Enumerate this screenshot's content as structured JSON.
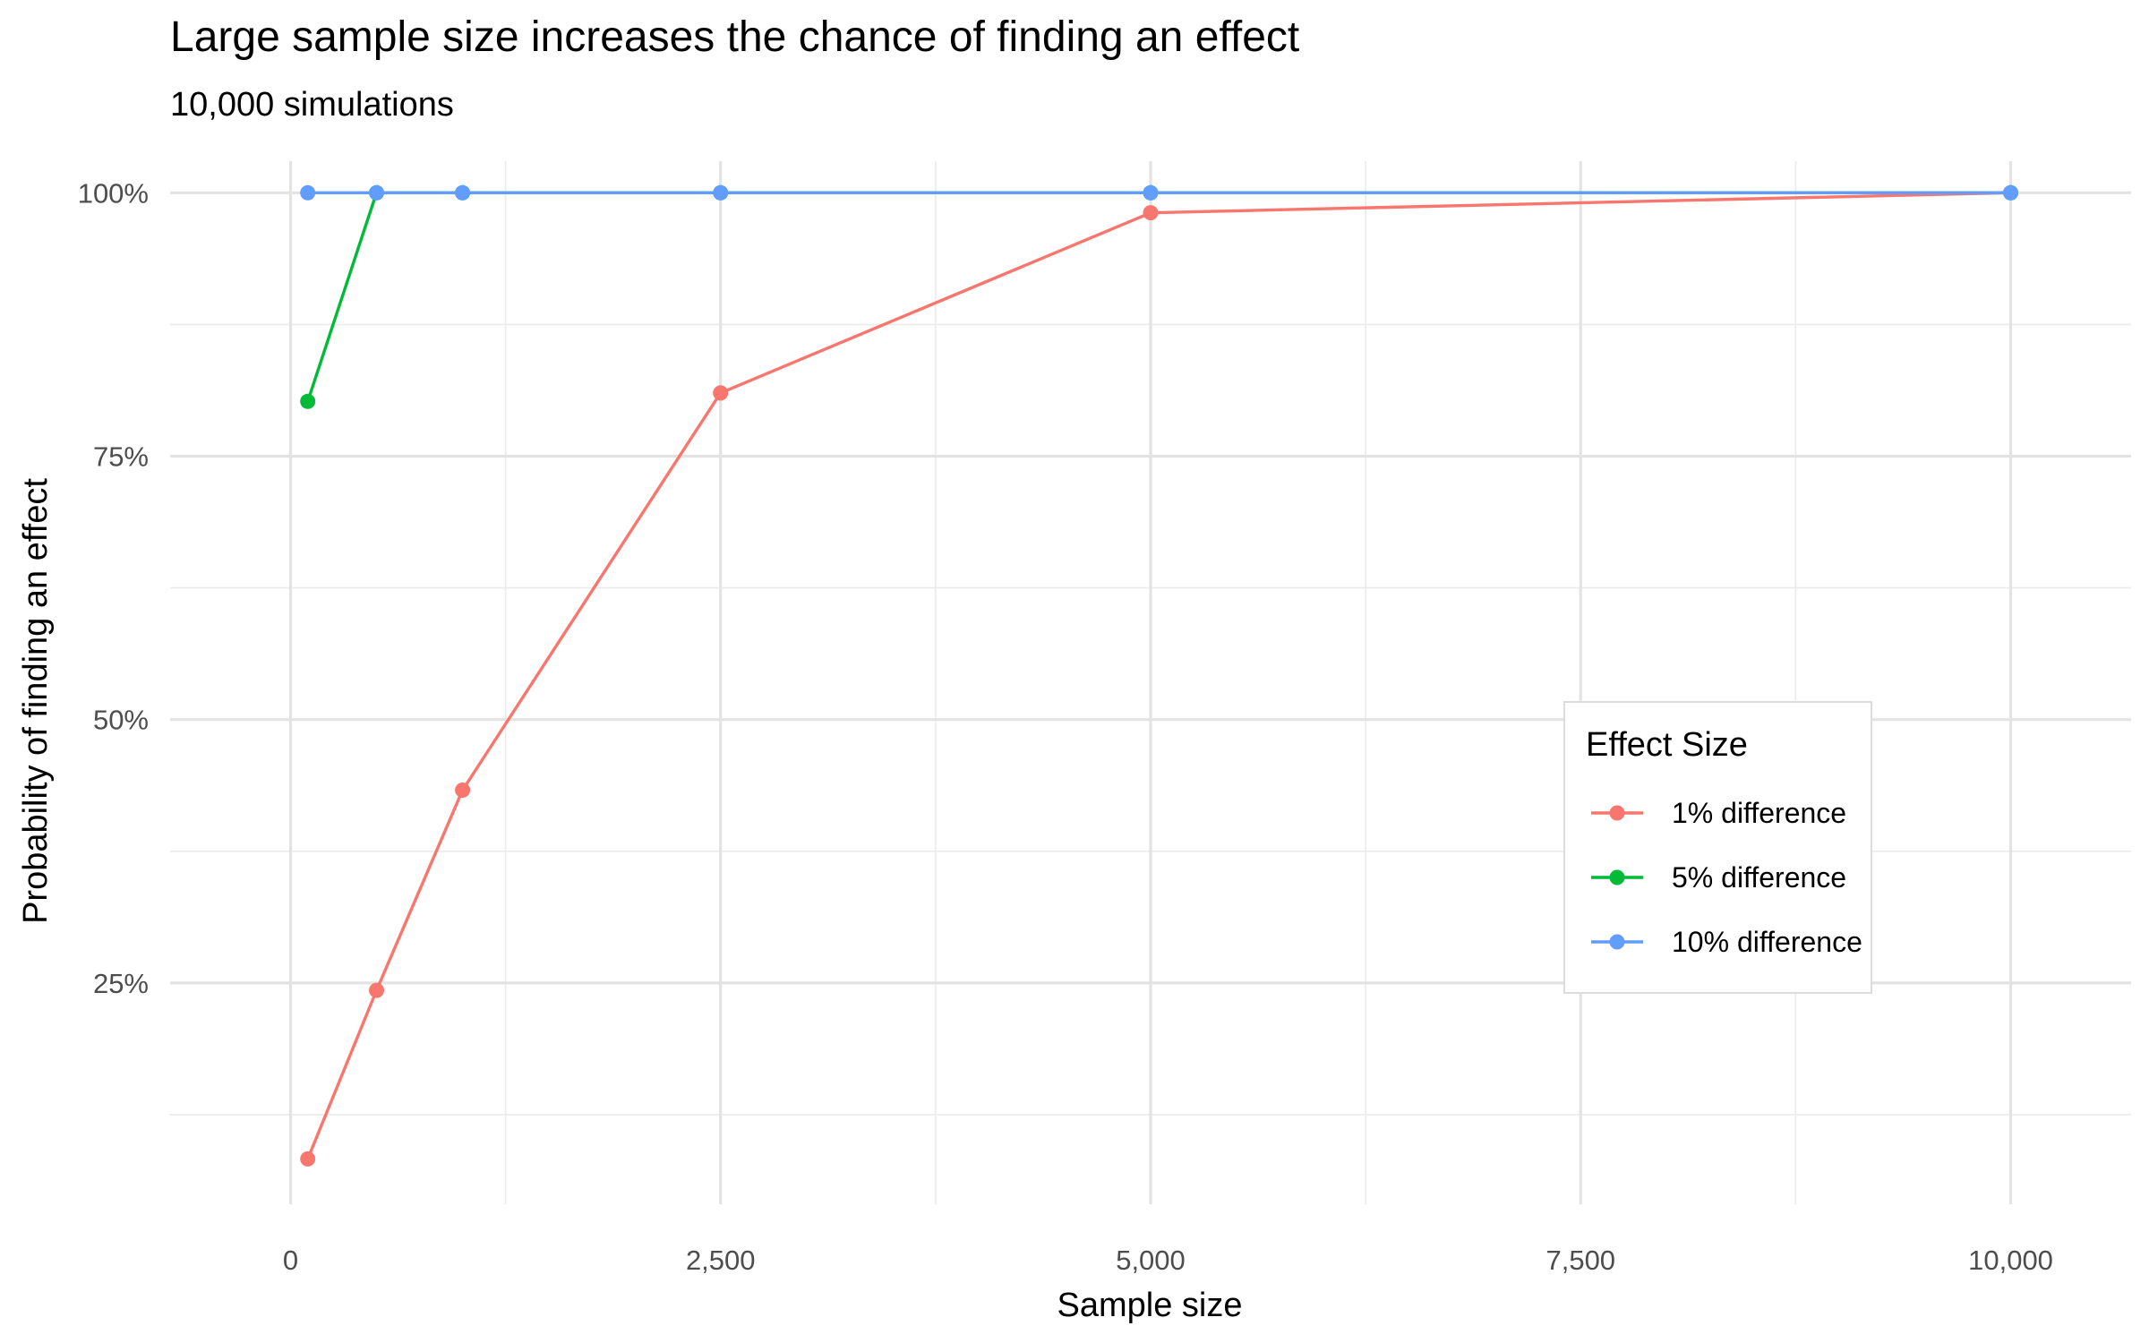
{
  "chart_data": {
    "type": "line",
    "title": "Large sample size increases the chance of finding an effect",
    "subtitle": "10,000 simulations",
    "xlabel": "Sample size",
    "ylabel": "Probability of finding an effect",
    "xlim": [
      -700,
      10700
    ],
    "ylim": [
      0.04,
      1.03
    ],
    "x_ticks": [
      0,
      2500,
      5000,
      7500,
      10000
    ],
    "x_tick_labels": [
      "0",
      "2,500",
      "5,000",
      "7,500",
      "10,000"
    ],
    "x_minor_ticks": [
      1250,
      3750,
      6250,
      8750
    ],
    "y_ticks": [
      0.25,
      0.5,
      0.75,
      1.0
    ],
    "y_tick_labels": [
      "25%",
      "50%",
      "75%",
      "100%"
    ],
    "y_minor_ticks": [
      0.125,
      0.375,
      0.625,
      0.875
    ],
    "grid": true,
    "legend_title": "Effect Size",
    "legend_position": "inside-right",
    "series": [
      {
        "name": "1% difference",
        "color": "#F8766D",
        "x": [
          100,
          500,
          1000,
          2500,
          5000,
          10000
        ],
        "y": [
          0.083,
          0.243,
          0.433,
          0.81,
          0.981,
          1.0
        ]
      },
      {
        "name": "5% difference",
        "color": "#00BA38",
        "x": [
          100,
          500,
          1000,
          2500,
          5000,
          10000
        ],
        "y": [
          0.802,
          1.0,
          1.0,
          1.0,
          1.0,
          1.0
        ]
      },
      {
        "name": "10% difference",
        "color": "#619CFF",
        "x": [
          100,
          500,
          1000,
          2500,
          5000,
          10000
        ],
        "y": [
          1.0,
          1.0,
          1.0,
          1.0,
          1.0,
          1.0
        ]
      }
    ]
  }
}
